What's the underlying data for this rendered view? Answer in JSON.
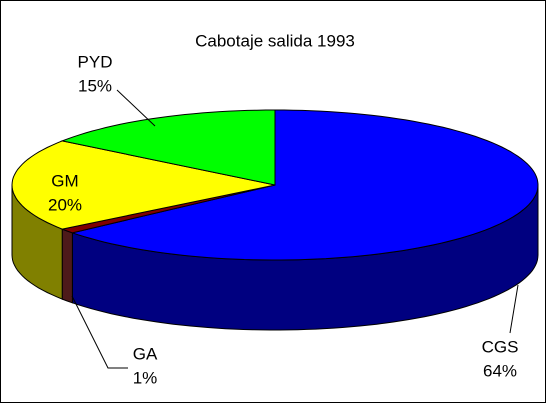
{
  "chart_data": {
    "type": "pie",
    "title": "Cabotaje salida 1993",
    "categories": [
      "CGS",
      "GA",
      "GM",
      "PYD"
    ],
    "values": [
      64,
      1,
      20,
      15
    ],
    "value_labels": [
      "64%",
      "1%",
      "20%",
      "15%"
    ],
    "colors": [
      "#0000ff",
      "#800000",
      "#ffff00",
      "#00ff00"
    ],
    "side_colors": [
      "#000080",
      "#4d1a1a",
      "#808000",
      "#008000"
    ]
  }
}
